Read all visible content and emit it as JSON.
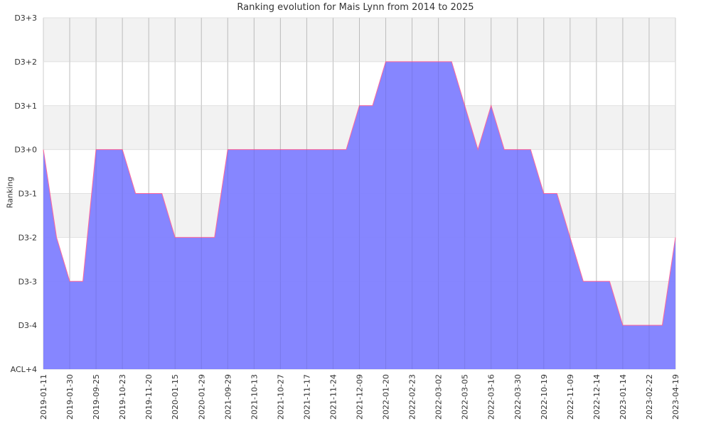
{
  "chart_data": {
    "type": "area",
    "title": "Ranking evolution for Mais Lynn from 2014 to 2025",
    "xlabel": "",
    "ylabel": "Ranking",
    "x_tick_labels": [
      "2019-01-11",
      "2019-01-30",
      "2019-09-25",
      "2019-10-23",
      "2019-11-20",
      "2020-01-15",
      "2020-01-29",
      "2021-09-29",
      "2021-10-13",
      "2021-10-27",
      "2021-11-17",
      "2021-11-24",
      "2021-12-09",
      "2022-01-20",
      "2022-02-23",
      "2022-03-02",
      "2022-03-05",
      "2022-03-16",
      "2022-03-30",
      "2022-10-19",
      "2022-11-09",
      "2022-12-14",
      "2023-01-14",
      "2023-02-22",
      "2023-04-19"
    ],
    "y_tick_labels": [
      "ACL+4",
      "D3-4",
      "D3-3",
      "D3-2",
      "D3-1",
      "D3+0",
      "D3+1",
      "D3+2",
      "D3+3"
    ],
    "ylim": [
      0,
      8
    ],
    "grid": true,
    "colors": {
      "fill": "#8080ff",
      "line": "#ff6699",
      "band": "#f2f2f2",
      "grid": "#cccccc"
    },
    "series": [
      {
        "x": [
          0,
          0.5,
          1,
          1.5,
          2,
          2.5,
          3,
          3.5,
          4,
          4.5,
          5,
          5.5,
          6,
          6.5,
          7,
          7.5,
          8,
          8.5,
          9,
          9.5,
          10,
          10.5,
          11,
          11.5,
          12,
          12.5,
          13,
          13.5,
          14,
          14.5,
          15,
          15.5,
          16,
          16.5,
          17,
          17.5,
          18,
          18.5,
          19,
          19.5,
          20,
          20.5,
          21,
          21.5,
          22,
          22.5,
          23,
          23.5,
          24
        ],
        "values": [
          5,
          3,
          2,
          2,
          5,
          5,
          5,
          4,
          4,
          4,
          3,
          3,
          3,
          3,
          5,
          5,
          5,
          5,
          5,
          5,
          5,
          5,
          5,
          5,
          6,
          6,
          7,
          7,
          7,
          7,
          7,
          7,
          6,
          5,
          6,
          5,
          5,
          5,
          4,
          4,
          3,
          2,
          2,
          2,
          1,
          1,
          1,
          1,
          3
        ]
      }
    ]
  }
}
